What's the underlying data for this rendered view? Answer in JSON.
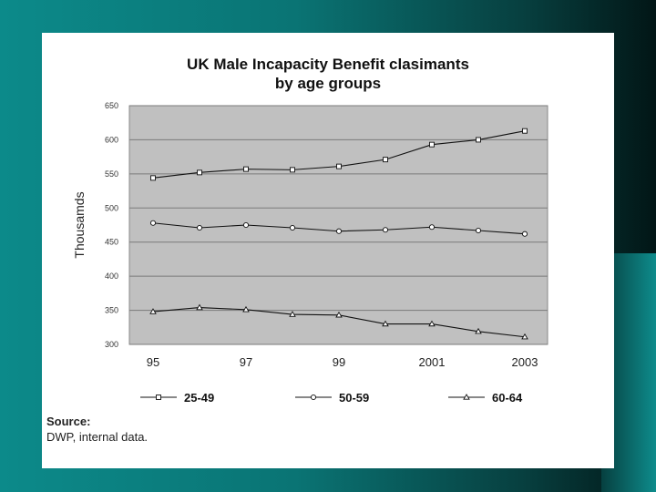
{
  "chart_data": {
    "type": "line",
    "title_lines": [
      "UK Male Incapacity Benefit clasimants",
      "by age groups"
    ],
    "xlabel": "",
    "ylabel": "Thousamds",
    "ylim": [
      300,
      650
    ],
    "yticks": [
      "650",
      "600",
      "550",
      "500",
      "450",
      "400",
      "350",
      "300"
    ],
    "ytick_values": [
      650,
      600,
      550,
      500,
      450,
      400,
      350,
      300
    ],
    "x": [
      1995,
      1996,
      1997,
      1998,
      1999,
      2000,
      2001,
      2002,
      2003
    ],
    "xticks": [
      "95",
      "97",
      "99",
      "2001",
      "2003"
    ],
    "xtick_values": [
      1995,
      1997,
      1999,
      2001,
      2003
    ],
    "grid": true,
    "legend_position": "bottom",
    "series": [
      {
        "name": "25-49",
        "marker": "square",
        "values": [
          544,
          552,
          557,
          556,
          561,
          571,
          593,
          600,
          613
        ]
      },
      {
        "name": "50-59",
        "marker": "circle",
        "values": [
          478,
          471,
          475,
          471,
          466,
          468,
          472,
          467,
          462
        ]
      },
      {
        "name": "60-64",
        "marker": "triangle",
        "values": [
          348,
          354,
          351,
          344,
          343,
          330,
          330,
          319,
          311
        ]
      }
    ]
  },
  "source": {
    "label": "Source:",
    "text": "DWP, internal data."
  }
}
